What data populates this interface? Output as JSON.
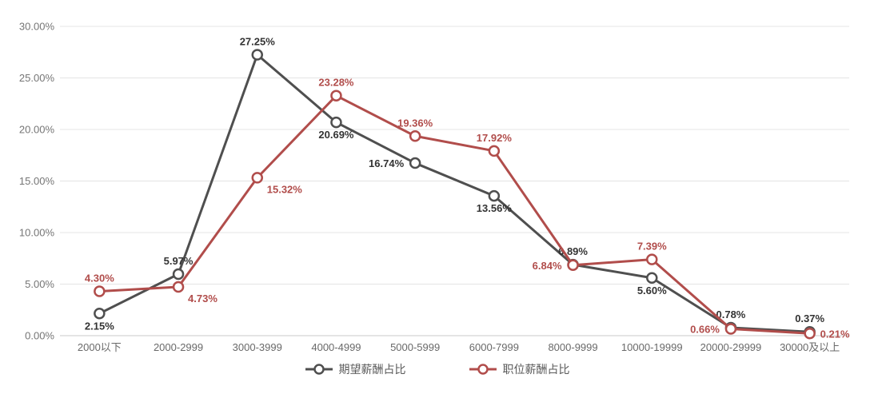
{
  "chart_data": {
    "type": "line",
    "title": "",
    "xlabel": "",
    "ylabel": "",
    "categories": [
      "2000以下",
      "2000-2999",
      "3000-3999",
      "4000-4999",
      "5000-5999",
      "6000-7999",
      "8000-9999",
      "10000-19999",
      "20000-29999",
      "30000及以上"
    ],
    "series": [
      {
        "name": "期望薪酬占比",
        "color": "#4f4f4f",
        "label_color": "#333333",
        "marker": "hollow-circle",
        "values": [
          2.15,
          5.97,
          27.25,
          20.69,
          16.74,
          13.56,
          6.89,
          5.6,
          0.78,
          0.37
        ],
        "label_placement": [
          "below",
          "above",
          "above",
          "below",
          "left",
          "below",
          "above",
          "below",
          "above",
          "above"
        ]
      },
      {
        "name": "职位薪酬占比",
        "color": "#b14d4b",
        "label_color": "#b14d4b",
        "marker": "hollow-circle",
        "values": [
          4.3,
          4.73,
          15.32,
          23.28,
          19.36,
          17.92,
          6.84,
          7.39,
          0.66,
          0.21
        ],
        "label_placement": [
          "above",
          "below-right",
          "below-right",
          "above",
          "above",
          "above",
          "left",
          "above",
          "left",
          "right"
        ]
      }
    ],
    "ylim": [
      0,
      30
    ],
    "ytick_step": 5,
    "ytick_decimals": 2,
    "ytick_suffix": "%",
    "value_label_decimals": 2,
    "value_label_suffix": "%",
    "grid": true,
    "legend_position": "bottom-center",
    "colors": {
      "background": "#ffffff",
      "gridline": "#e4e4e4",
      "axis_line": "#c9c9c9",
      "ytick_label": "#757575",
      "xtick_label": "#696969",
      "legend_text": "#5a5a5a"
    }
  }
}
